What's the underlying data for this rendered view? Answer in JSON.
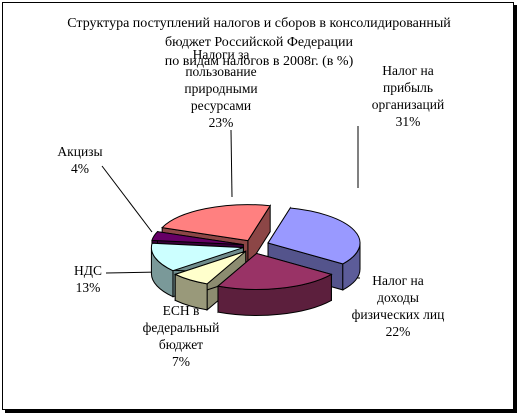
{
  "chart_data": {
    "type": "pie",
    "title_lines": [
      "Структура поступлений налогов и сборов в консолидированный",
      "бюджет Российской Федерации",
      "по видам налогов в 2008г. (в %)"
    ],
    "slices": [
      {
        "name_lines": [
          "Налог на",
          "прибыль",
          "организаций"
        ],
        "value": 31,
        "value_label": "31%",
        "color": "#9999FF"
      },
      {
        "name_lines": [
          "Налог на",
          "доходы",
          "физических лиц"
        ],
        "value": 22,
        "value_label": "22%",
        "color": "#993366"
      },
      {
        "name_lines": [
          "ЕСН в",
          "федеральный",
          "бюджет"
        ],
        "value": 7,
        "value_label": "7%",
        "color": "#FFFFCC"
      },
      {
        "name_lines": [
          "НДС"
        ],
        "value": 13,
        "value_label": "13%",
        "color": "#CCFFFF"
      },
      {
        "name_lines": [
          "Акцизы"
        ],
        "value": 4,
        "value_label": "4%",
        "color": "#660066"
      },
      {
        "name_lines": [
          "Налоги за",
          "пользование",
          "природными",
          "ресурсами"
        ],
        "value": 23,
        "value_label": "23%",
        "color": "#FF8080"
      }
    ],
    "style": "3d-exploded-pie"
  }
}
